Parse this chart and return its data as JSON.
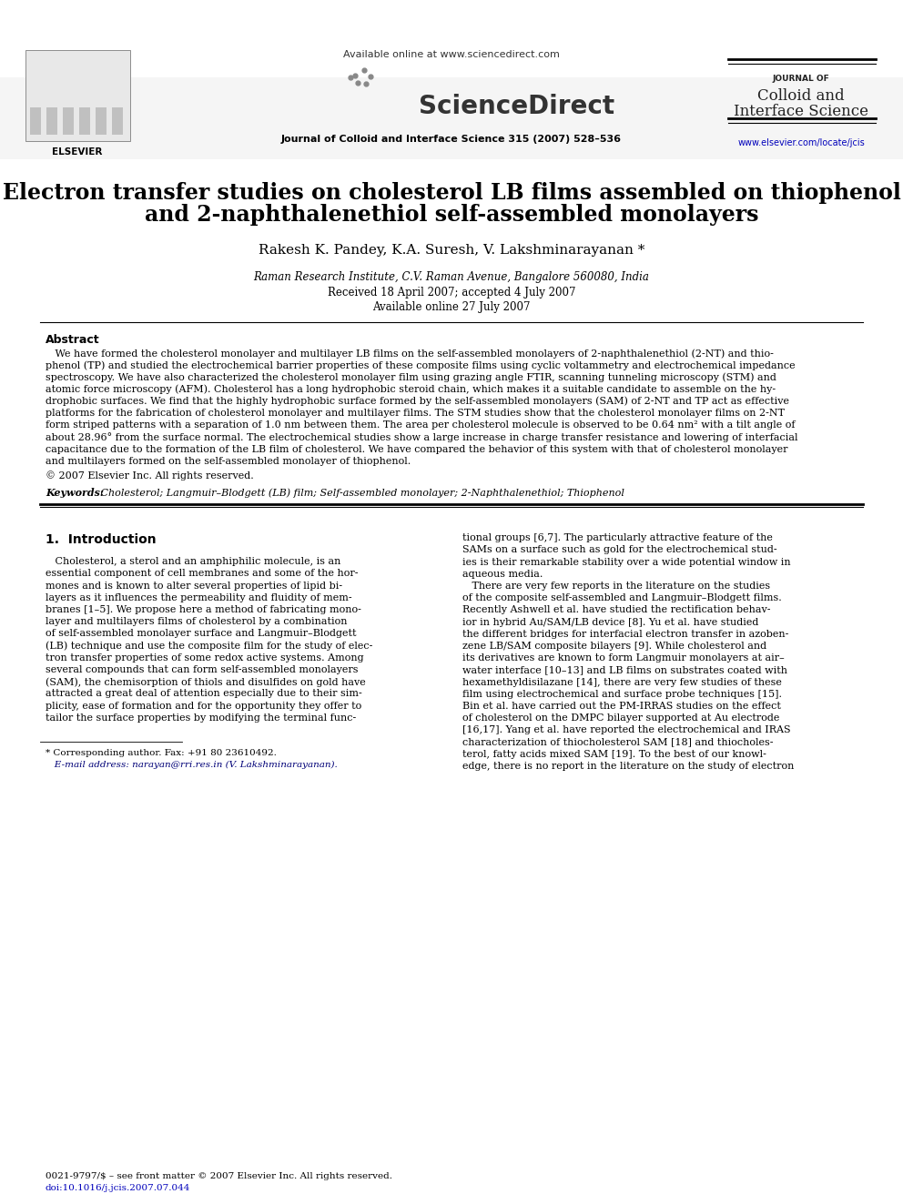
{
  "page_bg": "#ffffff",
  "available_online": "Available online at www.sciencedirect.com",
  "sciencedirect_text": "ScienceDirect",
  "journal_line": "Journal of Colloid and Interface Science 315 (2007) 528–536",
  "journal_name_small": "JOURNAL OF",
  "journal_name_line2": "Colloid and",
  "journal_name_line3": "Interface Science",
  "elsevier_text": "ELSEVIER",
  "journal_url": "www.elsevier.com/locate/jcis",
  "title_line1": "Electron transfer studies on cholesterol LB films assembled on thiophenol",
  "title_line2": "and 2-naphthalenethiol self-assembled monolayers",
  "authors": "Rakesh K. Pandey, K.A. Suresh, V. Lakshminarayanan *",
  "affiliation": "Raman Research Institute, C.V. Raman Avenue, Bangalore 560080, India",
  "received": "Received 18 April 2007; accepted 4 July 2007",
  "available_date": "Available online 27 July 2007",
  "abstract_heading": "Abstract",
  "abstract_lines": [
    "   We have formed the cholesterol monolayer and multilayer LB films on the self-assembled monolayers of 2-naphthalenethiol (2-NT) and thio-",
    "phenol (TP) and studied the electrochemical barrier properties of these composite films using cyclic voltammetry and electrochemical impedance",
    "spectroscopy. We have also characterized the cholesterol monolayer film using grazing angle FTIR, scanning tunneling microscopy (STM) and",
    "atomic force microscopy (AFM). Cholesterol has a long hydrophobic steroid chain, which makes it a suitable candidate to assemble on the hy-",
    "drophobic surfaces. We find that the highly hydrophobic surface formed by the self-assembled monolayers (SAM) of 2-NT and TP act as effective",
    "platforms for the fabrication of cholesterol monolayer and multilayer films. The STM studies show that the cholesterol monolayer films on 2-NT",
    "form striped patterns with a separation of 1.0 nm between them. The area per cholesterol molecule is observed to be 0.64 nm² with a tilt angle of",
    "about 28.96° from the surface normal. The electrochemical studies show a large increase in charge transfer resistance and lowering of interfacial",
    "capacitance due to the formation of the LB film of cholesterol. We have compared the behavior of this system with that of cholesterol monolayer",
    "and multilayers formed on the self-assembled monolayer of thiophenol.",
    "© 2007 Elsevier Inc. All rights reserved."
  ],
  "keywords_label": "Keywords:",
  "keywords_text": " Cholesterol; Langmuir–Blodgett (LB) film; Self-assembled monolayer; 2-Naphthalenethiol; Thiophenol",
  "section1_heading": "1.  Introduction",
  "col1_lines": [
    "   Cholesterol, a sterol and an amphiphilic molecule, is an",
    "essential component of cell membranes and some of the hor-",
    "mones and is known to alter several properties of lipid bi-",
    "layers as it influences the permeability and fluidity of mem-",
    "branes [1–5]. We propose here a method of fabricating mono-",
    "layer and multilayers films of cholesterol by a combination",
    "of self-assembled monolayer surface and Langmuir–Blodgett",
    "(LB) technique and use the composite film for the study of elec-",
    "tron transfer properties of some redox active systems. Among",
    "several compounds that can form self-assembled monolayers",
    "(SAM), the chemisorption of thiols and disulfides on gold have",
    "attracted a great deal of attention especially due to their sim-",
    "plicity, ease of formation and for the opportunity they offer to",
    "tailor the surface properties by modifying the terminal func-"
  ],
  "col2_lines": [
    "tional groups [6,7]. The particularly attractive feature of the",
    "SAMs on a surface such as gold for the electrochemical stud-",
    "ies is their remarkable stability over a wide potential window in",
    "aqueous media.",
    "   There are very few reports in the literature on the studies",
    "of the composite self-assembled and Langmuir–Blodgett films.",
    "Recently Ashwell et al. have studied the rectification behav-",
    "ior in hybrid Au/SAM/LB device [8]. Yu et al. have studied",
    "the different bridges for interfacial electron transfer in azoben-",
    "zene LB/SAM composite bilayers [9]. While cholesterol and",
    "its derivatives are known to form Langmuir monolayers at air–",
    "water interface [10–13] and LB films on substrates coated with",
    "hexamethyldisilazane [14], there are very few studies of these",
    "film using electrochemical and surface probe techniques [15].",
    "Bin et al. have carried out the PM-IRRAS studies on the effect",
    "of cholesterol on the DMPC bilayer supported at Au electrode",
    "[16,17]. Yang et al. have reported the electrochemical and IRAS",
    "characterization of thiocholesterol SAM [18] and thiocholes-",
    "terol, fatty acids mixed SAM [19]. To the best of our knowl-",
    "edge, there is no report in the literature on the study of electron"
  ],
  "footer_note1": "* Corresponding author. Fax: +91 80 23610492.",
  "footer_note2": "   E-mail address: narayan@rri.res.in (V. Lakshminarayanan).",
  "footer_copy": "0021-9797/$ – see front matter © 2007 Elsevier Inc. All rights reserved.",
  "footer_doi": "doi:10.1016/j.jcis.2007.07.044"
}
